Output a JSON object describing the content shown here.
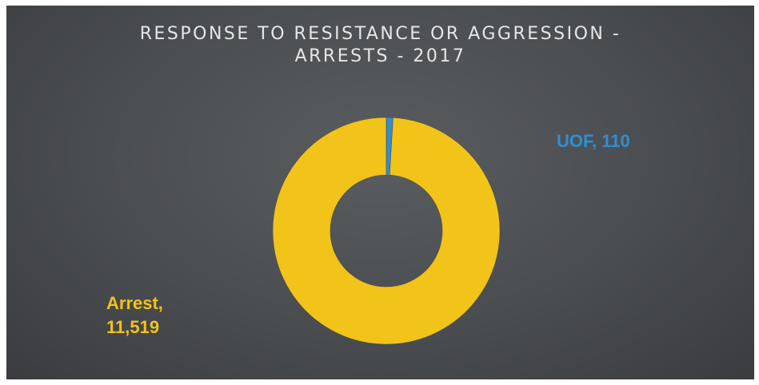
{
  "chart_data": {
    "type": "pie",
    "title": "RESPONSE TO RESISTANCE OR AGGRESSION - ARRESTS - 2017",
    "title_lines": [
      "RESPONSE TO RESISTANCE OR AGGRESSION -",
      "ARRESTS - 2017"
    ],
    "slices": [
      {
        "name": "UOF",
        "value": 110,
        "value_label": "110",
        "color": "#2e8fd4"
      },
      {
        "name": "Arrest",
        "value": 11519,
        "value_label": "11,519",
        "color": "#f2c318"
      }
    ],
    "donut": true,
    "legend": false
  }
}
